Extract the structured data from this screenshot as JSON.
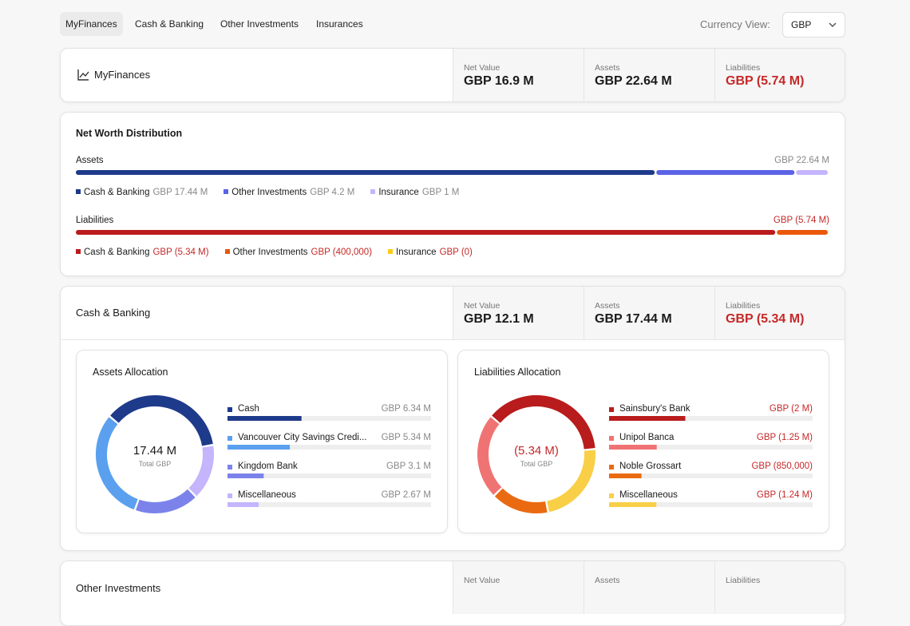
{
  "nav": {
    "tabs": [
      "MyFinances",
      "Cash & Banking",
      "Other Investments",
      "Insurances"
    ],
    "currency_label": "Currency View:",
    "currency": "GBP"
  },
  "summary": {
    "title": "MyFinances",
    "stats": [
      {
        "label": "Net Value",
        "value": "GBP 16.9 M"
      },
      {
        "label": "Assets",
        "value": "GBP 22.64 M"
      },
      {
        "label": "Liabilities",
        "value": "GBP (5.74 M)"
      }
    ]
  },
  "distribution": {
    "title": "Net Worth Distribution",
    "groups": [
      {
        "name": "Assets",
        "total": 22640000,
        "total_label": "GBP 22.64 M",
        "negative": false,
        "segments": [
          {
            "name": "Cash & Banking",
            "value": 17440000,
            "label": "GBP 17.44 M",
            "color": "#1e3a8a"
          },
          {
            "name": "Other Investments",
            "value": 4200000,
            "label": "GBP 4.2 M",
            "color": "#5b63e6"
          },
          {
            "name": "Insurance",
            "value": 1000000,
            "label": "GBP 1 M",
            "color": "#c4b5fd"
          }
        ]
      },
      {
        "name": "Liabilities",
        "total": 5740000,
        "total_label": "GBP (5.74 M)",
        "negative": true,
        "segments": [
          {
            "name": "Cash & Banking",
            "value": 5340000,
            "label": "GBP (5.34 M)",
            "color": "#b91c1c"
          },
          {
            "name": "Other Investments",
            "value": 400000,
            "label": "GBP (400,000)",
            "color": "#ea580c"
          },
          {
            "name": "Insurance",
            "value": 0,
            "label": "GBP (0)",
            "color": "#facc15"
          }
        ]
      }
    ]
  },
  "cash_banking": {
    "title": "Cash & Banking",
    "stats": [
      {
        "label": "Net Value",
        "value": "GBP 12.1 M"
      },
      {
        "label": "Assets",
        "value": "GBP 17.44 M"
      },
      {
        "label": "Liabilities",
        "value": "GBP (5.34 M)"
      }
    ],
    "charts": [
      {
        "type": "donut",
        "title": "Assets Allocation",
        "center_value": "17.44 M",
        "center_label": "Total GBP",
        "total": 17440000,
        "negative": false,
        "items": [
          {
            "name": "Cash",
            "value": 6340000,
            "label": "GBP 6.34 M",
            "color": "#1e3a8a"
          },
          {
            "name": "Vancouver City Savings Credi...",
            "value": 5340000,
            "label": "GBP 5.34 M",
            "color": "#5aa0ef"
          },
          {
            "name": "Kingdom Bank",
            "value": 3100000,
            "label": "GBP 3.1 M",
            "color": "#7b83eb"
          },
          {
            "name": "Miscellaneous",
            "value": 2670000,
            "label": "GBP 2.67 M",
            "color": "#c4b5fd"
          }
        ]
      },
      {
        "type": "donut",
        "title": "Liabilities Allocation",
        "center_value": "(5.34 M)",
        "center_label": "Total GBP",
        "total": 5340000,
        "negative": true,
        "items": [
          {
            "name": "Sainsbury's Bank",
            "value": 2000000,
            "label": "GBP (2 M)",
            "color": "#b91c1c"
          },
          {
            "name": "Unipol Banca",
            "value": 1250000,
            "label": "GBP (1.25 M)",
            "color": "#f07373"
          },
          {
            "name": "Noble Grossart",
            "value": 850000,
            "label": "GBP (850,000)",
            "color": "#ea6a12"
          },
          {
            "name": "Miscellaneous",
            "value": 1240000,
            "label": "GBP (1.24 M)",
            "color": "#f9cf48"
          }
        ]
      }
    ]
  },
  "other_investments": {
    "title": "Other Investments",
    "stats": [
      {
        "label": "Net Value"
      },
      {
        "label": "Assets"
      },
      {
        "label": "Liabilities"
      }
    ]
  }
}
